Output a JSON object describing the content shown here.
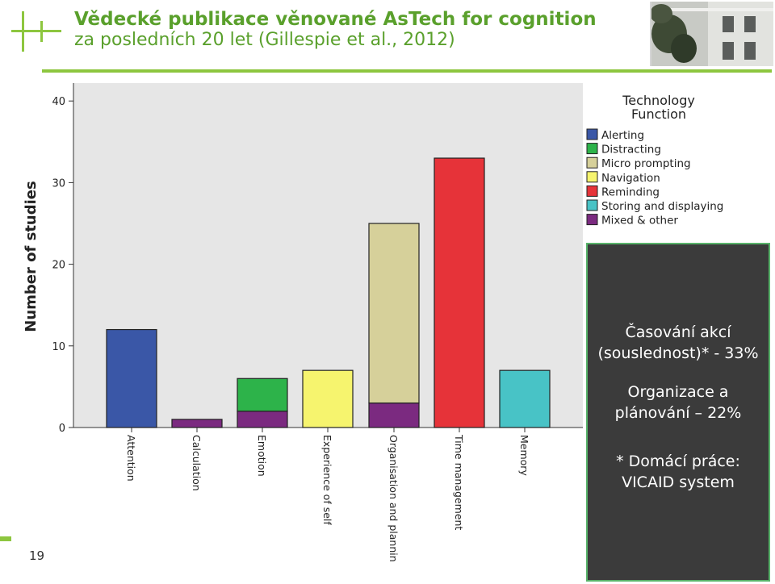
{
  "slide": {
    "title_line1": "Vědecké publikace věnované AsTech for cognition",
    "title_line2": "za posledních 20 let (Gillespie et al., 2012)",
    "page_number": "19"
  },
  "overlay": {
    "block1_line1": "Časování akcí",
    "block1_line2": "(souslednost)* - 33%",
    "block2_line1": "Organizace a",
    "block2_line2": "plánování – 22%",
    "block3_line1": "* Domácí práce:",
    "block3_line2": "VICAID system"
  },
  "colors": {
    "title": "#5aa02c",
    "accent": "#8dc63f",
    "plot_bg": "#e6e6e6",
    "overlay_bg": "#3b3b3b",
    "overlay_border": "#58b36a"
  },
  "chart_data": {
    "type": "bar",
    "stacked": true,
    "title": "",
    "xlabel": "",
    "ylabel": "Number of studies",
    "ylim": [
      0,
      41
    ],
    "yticks": [
      0,
      10,
      20,
      30,
      40
    ],
    "grid": false,
    "legend_title_line1": "Technology",
    "legend_title_line2": "Function",
    "legend_position": "right",
    "categories": [
      "Attention",
      "Calculation",
      "Emotion",
      "Experience of self",
      "Organisation and plannin",
      "Time management",
      "Memory"
    ],
    "series": [
      {
        "name": "Alerting",
        "color": "#3a57a7",
        "values": [
          12,
          0,
          0,
          0,
          0,
          0,
          0
        ]
      },
      {
        "name": "Distracting",
        "color": "#2db34a",
        "values": [
          0,
          0,
          4,
          0,
          0,
          0,
          0
        ]
      },
      {
        "name": "Micro prompting",
        "color": "#d6d09a",
        "values": [
          0,
          0,
          0,
          0,
          22,
          0,
          0
        ]
      },
      {
        "name": "Navigation",
        "color": "#f6f46e",
        "values": [
          0,
          0,
          0,
          7,
          0,
          0,
          0
        ]
      },
      {
        "name": "Reminding",
        "color": "#e63339",
        "values": [
          0,
          0,
          0,
          0,
          0,
          33,
          0
        ]
      },
      {
        "name": "Storing and displaying",
        "color": "#48c3c6",
        "values": [
          0,
          0,
          0,
          0,
          0,
          0,
          7
        ]
      },
      {
        "name": "Mixed & other",
        "color": "#7b2a80",
        "values": [
          0,
          1,
          2,
          0,
          3,
          0,
          0
        ]
      }
    ],
    "stack_order": [
      "Mixed & other",
      "Alerting",
      "Distracting",
      "Micro prompting",
      "Navigation",
      "Reminding",
      "Storing and displaying"
    ]
  }
}
